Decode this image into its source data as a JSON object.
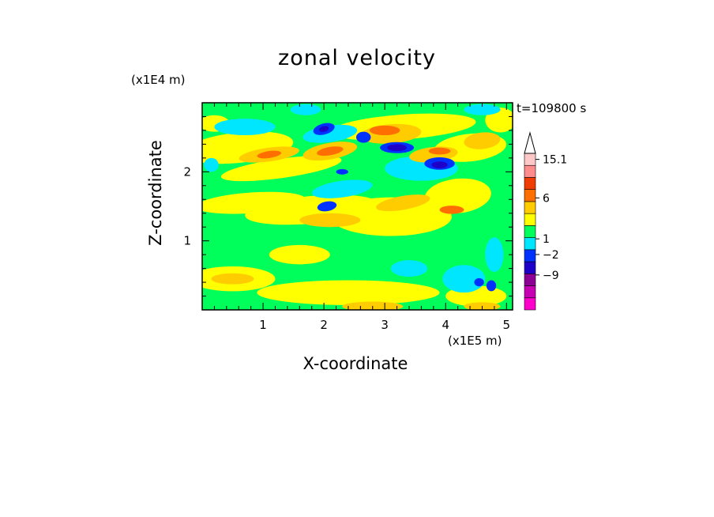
{
  "chart_data": {
    "type": "heatmap",
    "title": "zonal velocity",
    "xlabel": "X-coordinate",
    "ylabel": "Z-coordinate",
    "x_unit": "(x1E5 m)",
    "y_unit": "(x1E4 m)",
    "time_label": "t=109800 s",
    "xlim": [
      0,
      5.1
    ],
    "ylim": [
      0,
      3
    ],
    "x_ticks": [
      1,
      2,
      3,
      4,
      5
    ],
    "y_ticks": [
      1,
      2
    ],
    "colorbar": {
      "labels": [
        "15.1",
        "6",
        "1",
        "−2",
        "−9"
      ],
      "bands": [
        {
          "label": "",
          "color": "#ff00cc"
        },
        {
          "label": "",
          "color": "#c800b4"
        },
        {
          "label": "",
          "color": "#8c0096"
        },
        {
          "label": "",
          "color": "#1e00c8"
        },
        {
          "label": "",
          "color": "#0032ff"
        },
        {
          "label": "",
          "color": "#00e6ff"
        },
        {
          "label": "",
          "color": "#00ff5a"
        },
        {
          "label": "",
          "color": "#ffff00"
        },
        {
          "label": "",
          "color": "#ffcc00"
        },
        {
          "label": "",
          "color": "#ff6e00"
        },
        {
          "label": "",
          "color": "#f03c00"
        },
        {
          "label": "",
          "color": "#ff8c8c"
        },
        {
          "label": "",
          "color": "#ffc8c8"
        }
      ],
      "extend_max": true
    },
    "fields": [
      {
        "level": "yellow",
        "color": "#ffff00",
        "z": [
          0.0,
          2.85
        ],
        "x": [
          0.05,
          5.05
        ]
      },
      {
        "level": "green",
        "color": "#00ff5a"
      },
      {
        "level": "cyan",
        "color": "#00e6ff"
      },
      {
        "level": "orange",
        "color": "#ffcc00"
      },
      {
        "level": "dark-orange",
        "color": "#ff6e00"
      },
      {
        "level": "blue",
        "color": "#0032ff"
      },
      {
        "level": "navy",
        "color": "#1e00c8"
      }
    ]
  }
}
